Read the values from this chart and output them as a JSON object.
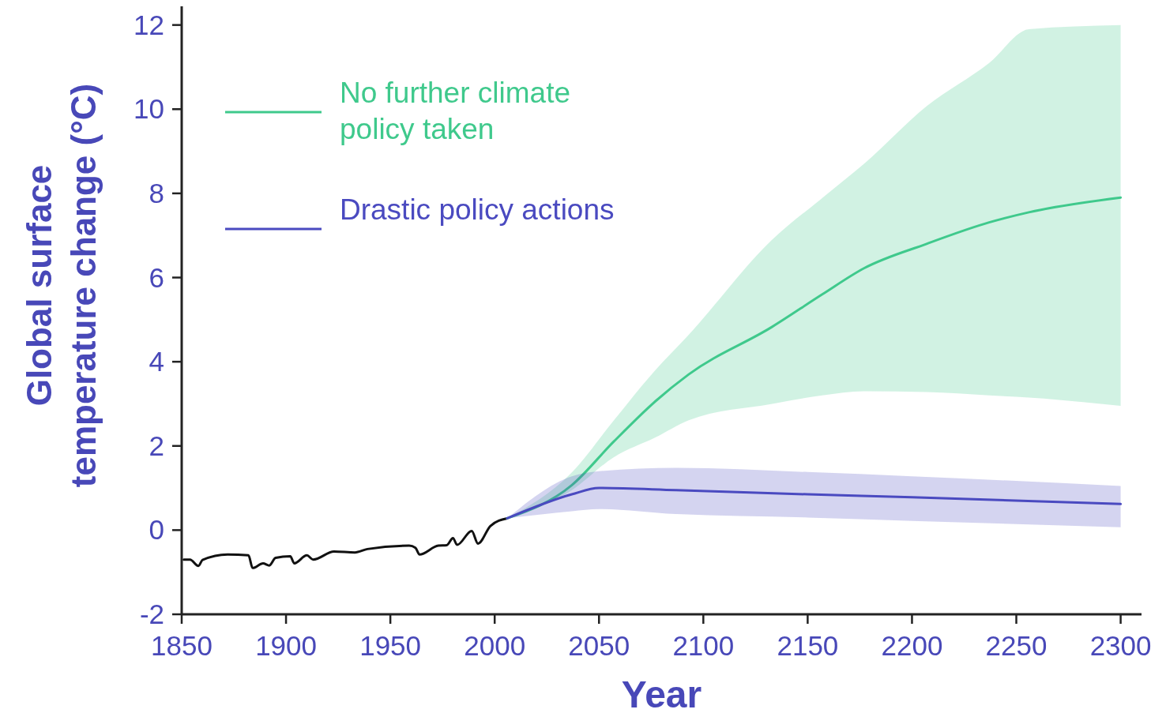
{
  "chart_data": {
    "type": "line",
    "xlabel": "Year",
    "ylabel": "Global surface temperature change (°C)",
    "xlim": [
      1850,
      2310
    ],
    "ylim": [
      -2,
      12.5
    ],
    "xticks": [
      1850,
      1900,
      1950,
      2000,
      2050,
      2100,
      2150,
      2200,
      2250,
      2300
    ],
    "yticks": [
      -2,
      0,
      2,
      4,
      6,
      8,
      10,
      12
    ],
    "grid": false,
    "legend": "top left",
    "marker": "none",
    "line_style": "solid",
    "series": [
      {
        "color": "#111111",
        "x": [
          1851,
          1854,
          1858,
          1860,
          1872,
          1882,
          1884,
          1889,
          1892,
          1895,
          1902,
          1904,
          1910,
          1913,
          1923,
          1933,
          1939,
          1959,
          1962,
          1964,
          1973,
          1977,
          1980,
          1982,
          1989,
          1992,
          1998,
          2006
        ],
        "values": [
          -0.7,
          -0.7,
          -0.85,
          -0.71,
          -0.58,
          -0.6,
          -0.9,
          -0.79,
          -0.84,
          -0.66,
          -0.62,
          -0.79,
          -0.6,
          -0.7,
          -0.51,
          -0.53,
          -0.45,
          -0.37,
          -0.42,
          -0.58,
          -0.37,
          -0.36,
          -0.19,
          -0.35,
          -0.02,
          -0.32,
          0.1,
          0.28
        ]
      },
      {
        "name": "No further climate policy taken",
        "color": "#3fc98c",
        "x": [
          2006,
          2037,
          2057,
          2077,
          2093,
          2133,
          2157,
          2177,
          2207,
          2237,
          2256,
          2300
        ],
        "values": [
          0.28,
          1.07,
          2.1,
          3.06,
          3.7,
          4.83,
          5.6,
          6.22,
          6.8,
          7.31,
          7.55,
          7.9
        ],
        "lower": [
          0.28,
          0.95,
          1.73,
          2.2,
          2.61,
          3.0,
          3.2,
          3.3,
          3.28,
          3.2,
          3.15,
          2.95
        ],
        "upper": [
          0.28,
          1.37,
          2.6,
          3.8,
          4.64,
          6.9,
          7.89,
          8.7,
          10.07,
          11.1,
          11.9,
          12
        ]
      },
      {
        "name": "Drastic policy actions",
        "color": "#4a4ac0",
        "x": [
          2006,
          2037,
          2050,
          2087,
          2150,
          2200,
          2300
        ],
        "values": [
          0.28,
          0.85,
          1.0,
          0.95,
          0.85,
          0.78,
          0.62
        ],
        "lower": [
          0.28,
          0.45,
          0.5,
          0.38,
          0.3,
          0.22,
          0.07
        ],
        "upper": [
          0.28,
          1.28,
          1.4,
          1.48,
          1.38,
          1.28,
          1.05
        ]
      }
    ]
  }
}
